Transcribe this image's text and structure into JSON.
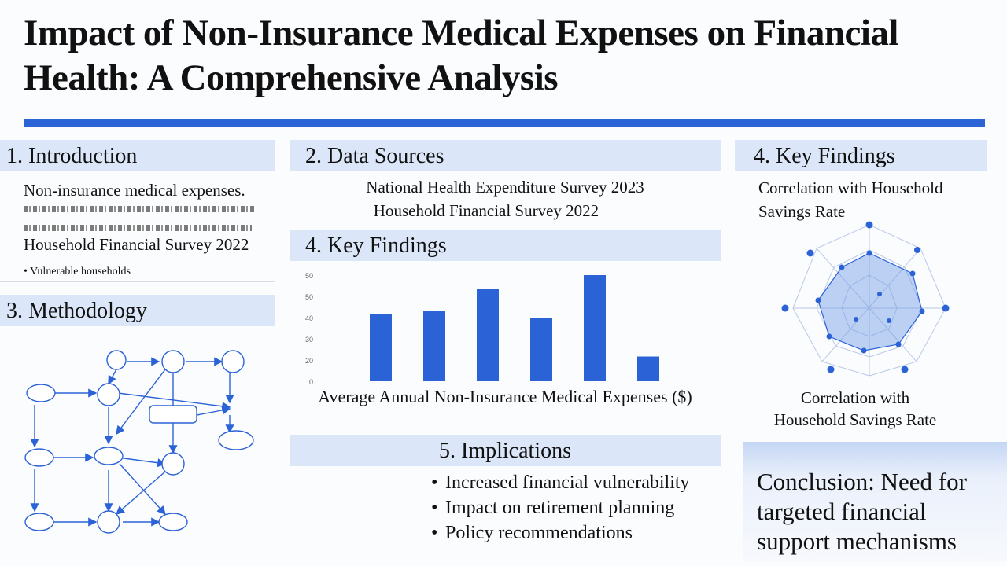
{
  "title": "Impact of Non-Insurance Medical Expenses on Financial Health: A Comprehensive Analysis",
  "sections": {
    "introduction": {
      "header": "1. Introduction",
      "line1": "Non-insurance medical expenses.",
      "line3": "Household Financial Survey 2022",
      "bullet_text": "Vulnerable households"
    },
    "data_sources": {
      "header": "2. Data Sources",
      "items": [
        "National Health Expenditure Survey 2023",
        "Household Financial Survey 2022"
      ]
    },
    "methodology": {
      "header": "3. Methodology"
    },
    "key_findings_bar": {
      "header": "4. Key Findings",
      "caption": "Average Annual Non-Insurance Medical Expenses ($)"
    },
    "key_findings_radar": {
      "header": "4. Key Findings",
      "top_caption": "Correlation with Household Savings Rate",
      "bottom_caption_line1": "Correlation with",
      "bottom_caption_line2": "Household Savings Rate"
    },
    "implications": {
      "header": "5. Implications",
      "bullets": [
        "Increased financial vulnerability",
        "Impact on retirement planning",
        "Policy recommendations"
      ]
    },
    "conclusion": {
      "text": "Conclusion: Need for targeted financial support mechanisms"
    }
  },
  "colors": {
    "accent": "#2b63d6",
    "header_bg": "#dbe6f8",
    "bar": "#2b63d6"
  },
  "chart_data": {
    "type": "bar",
    "title": "",
    "xlabel": "Average Annual Non-Insurance Medical Expenses ($)",
    "ylabel": "",
    "yticks": [
      "0",
      "20",
      "30",
      "40",
      "50",
      "50"
    ],
    "ylim": [
      0,
      60
    ],
    "values": [
      38,
      40,
      52,
      36,
      60,
      14
    ]
  }
}
